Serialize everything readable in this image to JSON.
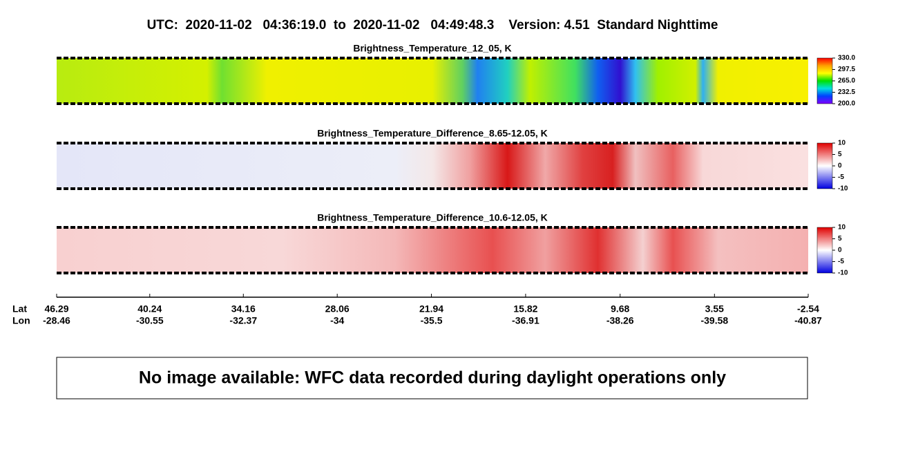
{
  "title": "UTC:  2020-11-02   04:36:19.0  to  2020-11-02   04:49:48.3    Version: 4.51  Standard Nighttime",
  "chart_data": [
    {
      "type": "image-strip",
      "title": "Brightness_Temperature_12_05, K",
      "colormap": "rainbow",
      "clim": [
        200,
        330
      ],
      "cticks": [
        {
          "value": 330,
          "label": "330.0"
        },
        {
          "value": 297.5,
          "label": "297.5"
        },
        {
          "value": 265,
          "label": "265.0"
        },
        {
          "value": 232.5,
          "label": "232.5"
        },
        {
          "value": 200,
          "label": "200.0"
        }
      ]
    },
    {
      "type": "image-strip",
      "title": "Brightness_Temperature_Difference_8.65-12.05, K",
      "colormap": "bwr",
      "clim": [
        -10,
        10
      ],
      "cticks": [
        10,
        5,
        0,
        -5,
        -10
      ]
    },
    {
      "type": "image-strip",
      "title": "Brightness_Temperature_Difference_10.6-12.05, K",
      "colormap": "bwr",
      "clim": [
        -10,
        10
      ],
      "cticks": [
        10,
        5,
        0,
        -5,
        -10
      ]
    }
  ],
  "x_axis": {
    "row_labels": [
      "Lat",
      "Lon"
    ],
    "xlim": [
      46.29,
      -2.54
    ],
    "ticks": [
      {
        "lat": 46.29,
        "lon": -28.46
      },
      {
        "lat": 40.24,
        "lon": -30.55
      },
      {
        "lat": 34.16,
        "lon": -32.37
      },
      {
        "lat": 28.06,
        "lon": -34.0
      },
      {
        "lat": 21.94,
        "lon": -35.5
      },
      {
        "lat": 15.82,
        "lon": -36.91
      },
      {
        "lat": 9.68,
        "lon": -38.26
      },
      {
        "lat": 3.55,
        "lon": -39.58
      },
      {
        "lat": -2.54,
        "lon": -40.87
      }
    ]
  },
  "notice": "No image available: WFC data recorded during daylight operations only"
}
